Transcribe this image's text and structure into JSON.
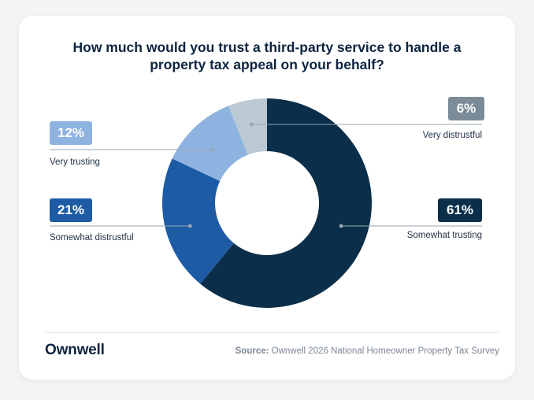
{
  "title_lines": [
    "How much would you trust a third-party service to handle a",
    "property tax appeal on your behalf?"
  ],
  "chart_data": {
    "type": "pie",
    "donut": true,
    "title": "How much would you trust a third-party service to handle a property tax appeal on your behalf?",
    "slices": [
      {
        "label": "Somewhat trusting",
        "value": 61,
        "display": "61%",
        "color": "#0b2f4a",
        "text_color": "#ffffff"
      },
      {
        "label": "Somewhat distrustful",
        "value": 21,
        "display": "21%",
        "color": "#1d5ba5",
        "text_color": "#ffffff"
      },
      {
        "label": "Very trusting",
        "value": 12,
        "display": "12%",
        "color": "#8fb3e0",
        "text_color": "#ffffff"
      },
      {
        "label": "Very distrustful",
        "value": 6,
        "display": "6%",
        "color": "#bac9d3",
        "text_color": "#ffffff"
      }
    ]
  },
  "badge_colors": {
    "Very distrustful": "#7b8b97"
  },
  "footer": {
    "brand": "Ownwell",
    "source_label": "Source:",
    "source_text": " Ownwell 2026 National Homeowner Property Tax Survey"
  }
}
